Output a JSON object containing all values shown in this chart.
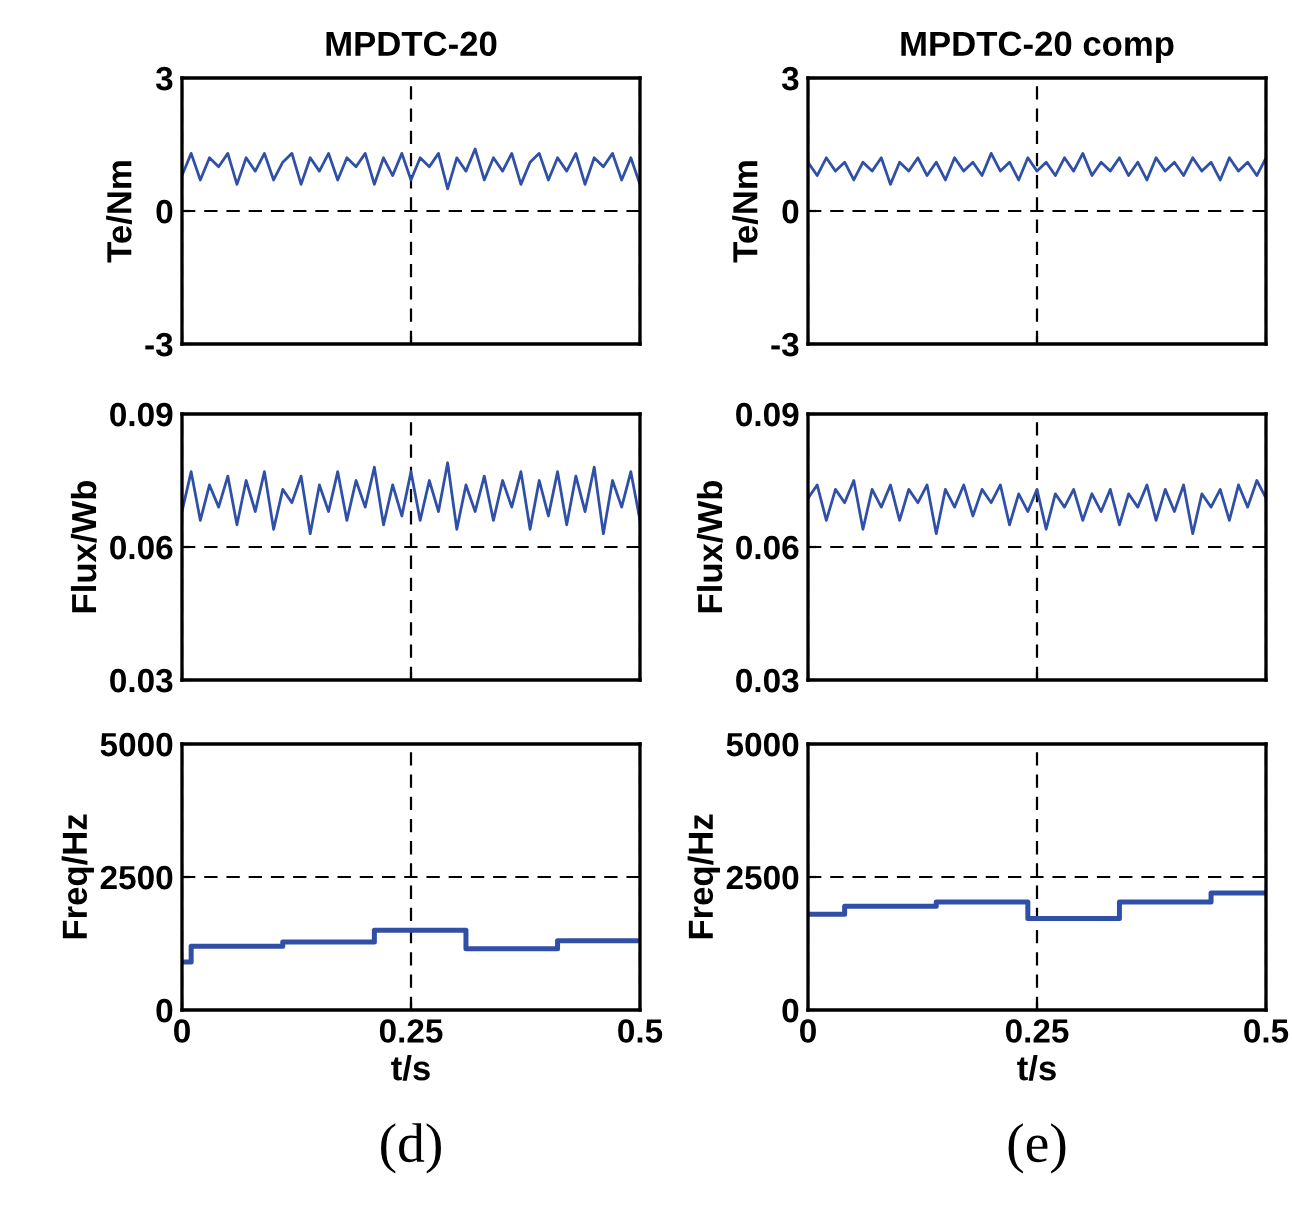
{
  "chart_data": [
    {
      "type": "line",
      "title": "MPDTC-20",
      "ylabel": "Te/Nm",
      "xlim": [
        0,
        0.5
      ],
      "xticks": [
        0,
        0.25,
        0.5
      ],
      "ylim": [
        -3,
        3
      ],
      "yticks": [
        -3,
        0,
        3
      ],
      "grid": true,
      "tick_labels": "y",
      "x": [
        0,
        0.01,
        0.02,
        0.03,
        0.04,
        0.05,
        0.06,
        0.07,
        0.08,
        0.09,
        0.1,
        0.11,
        0.12,
        0.13,
        0.14,
        0.15,
        0.16,
        0.17,
        0.18,
        0.19,
        0.2,
        0.21,
        0.22,
        0.23,
        0.24,
        0.25,
        0.26,
        0.27,
        0.28,
        0.29,
        0.3,
        0.31,
        0.32,
        0.33,
        0.34,
        0.35,
        0.36,
        0.37,
        0.38,
        0.39,
        0.4,
        0.41,
        0.42,
        0.43,
        0.44,
        0.45,
        0.46,
        0.47,
        0.48,
        0.49,
        0.5
      ],
      "series": [
        {
          "color": "#3050a8",
          "values": [
            0.8,
            1.3,
            0.7,
            1.2,
            1.0,
            1.3,
            0.6,
            1.2,
            0.9,
            1.3,
            0.7,
            1.1,
            1.3,
            0.6,
            1.2,
            0.9,
            1.3,
            0.7,
            1.2,
            1.0,
            1.3,
            0.6,
            1.2,
            0.8,
            1.3,
            0.7,
            1.2,
            1.0,
            1.3,
            0.5,
            1.2,
            0.9,
            1.4,
            0.7,
            1.2,
            0.9,
            1.3,
            0.6,
            1.1,
            1.3,
            0.7,
            1.2,
            0.9,
            1.3,
            0.6,
            1.2,
            1.0,
            1.3,
            0.7,
            1.2,
            0.6
          ]
        }
      ]
    },
    {
      "type": "line",
      "title": "MPDTC-20 comp",
      "ylabel": "Te/Nm",
      "xlim": [
        0,
        0.5
      ],
      "xticks": [
        0,
        0.25,
        0.5
      ],
      "ylim": [
        -3,
        3
      ],
      "yticks": [
        -3,
        0,
        3
      ],
      "grid": true,
      "tick_labels": "y",
      "x": [
        0,
        0.01,
        0.02,
        0.03,
        0.04,
        0.05,
        0.06,
        0.07,
        0.08,
        0.09,
        0.1,
        0.11,
        0.12,
        0.13,
        0.14,
        0.15,
        0.16,
        0.17,
        0.18,
        0.19,
        0.2,
        0.21,
        0.22,
        0.23,
        0.24,
        0.25,
        0.26,
        0.27,
        0.28,
        0.29,
        0.3,
        0.31,
        0.32,
        0.33,
        0.34,
        0.35,
        0.36,
        0.37,
        0.38,
        0.39,
        0.4,
        0.41,
        0.42,
        0.43,
        0.44,
        0.45,
        0.46,
        0.47,
        0.48,
        0.49,
        0.5
      ],
      "series": [
        {
          "color": "#3050a8",
          "values": [
            1.1,
            0.8,
            1.2,
            0.9,
            1.1,
            0.7,
            1.1,
            0.9,
            1.2,
            0.6,
            1.1,
            0.9,
            1.2,
            0.8,
            1.1,
            0.7,
            1.2,
            0.9,
            1.1,
            0.8,
            1.3,
            0.9,
            1.1,
            0.7,
            1.2,
            0.9,
            1.1,
            0.8,
            1.2,
            0.9,
            1.3,
            0.8,
            1.1,
            0.9,
            1.2,
            0.8,
            1.1,
            0.7,
            1.2,
            0.9,
            1.1,
            0.8,
            1.2,
            0.9,
            1.1,
            0.7,
            1.2,
            0.9,
            1.1,
            0.8,
            1.2
          ]
        }
      ]
    },
    {
      "type": "line",
      "ylabel": "Flux/Wb",
      "xlim": [
        0,
        0.5
      ],
      "xticks": [
        0,
        0.25,
        0.5
      ],
      "ylim": [
        0.03,
        0.09
      ],
      "yticks": [
        0.03,
        0.06,
        0.09
      ],
      "grid": true,
      "tick_labels": "y",
      "x": [
        0,
        0.01,
        0.02,
        0.03,
        0.04,
        0.05,
        0.06,
        0.07,
        0.08,
        0.09,
        0.1,
        0.11,
        0.12,
        0.13,
        0.14,
        0.15,
        0.16,
        0.17,
        0.18,
        0.19,
        0.2,
        0.21,
        0.22,
        0.23,
        0.24,
        0.25,
        0.26,
        0.27,
        0.28,
        0.29,
        0.3,
        0.31,
        0.32,
        0.33,
        0.34,
        0.35,
        0.36,
        0.37,
        0.38,
        0.39,
        0.4,
        0.41,
        0.42,
        0.43,
        0.44,
        0.45,
        0.46,
        0.47,
        0.48,
        0.49,
        0.5
      ],
      "series": [
        {
          "color": "#3050a8",
          "values": [
            0.068,
            0.077,
            0.066,
            0.074,
            0.069,
            0.076,
            0.065,
            0.075,
            0.068,
            0.077,
            0.064,
            0.073,
            0.07,
            0.076,
            0.063,
            0.074,
            0.068,
            0.077,
            0.066,
            0.075,
            0.069,
            0.078,
            0.065,
            0.074,
            0.067,
            0.077,
            0.066,
            0.075,
            0.068,
            0.079,
            0.064,
            0.074,
            0.068,
            0.076,
            0.066,
            0.075,
            0.069,
            0.077,
            0.064,
            0.075,
            0.067,
            0.077,
            0.065,
            0.076,
            0.068,
            0.078,
            0.063,
            0.075,
            0.069,
            0.077,
            0.066
          ]
        }
      ]
    },
    {
      "type": "line",
      "ylabel": "Flux/Wb",
      "xlim": [
        0,
        0.5
      ],
      "xticks": [
        0,
        0.25,
        0.5
      ],
      "ylim": [
        0.03,
        0.09
      ],
      "yticks": [
        0.03,
        0.06,
        0.09
      ],
      "grid": true,
      "tick_labels": "y",
      "x": [
        0,
        0.01,
        0.02,
        0.03,
        0.04,
        0.05,
        0.06,
        0.07,
        0.08,
        0.09,
        0.1,
        0.11,
        0.12,
        0.13,
        0.14,
        0.15,
        0.16,
        0.17,
        0.18,
        0.19,
        0.2,
        0.21,
        0.22,
        0.23,
        0.24,
        0.25,
        0.26,
        0.27,
        0.28,
        0.29,
        0.3,
        0.31,
        0.32,
        0.33,
        0.34,
        0.35,
        0.36,
        0.37,
        0.38,
        0.39,
        0.4,
        0.41,
        0.42,
        0.43,
        0.44,
        0.45,
        0.46,
        0.47,
        0.48,
        0.49,
        0.5
      ],
      "series": [
        {
          "color": "#3050a8",
          "values": [
            0.071,
            0.074,
            0.066,
            0.073,
            0.07,
            0.075,
            0.064,
            0.073,
            0.069,
            0.074,
            0.066,
            0.073,
            0.07,
            0.074,
            0.063,
            0.073,
            0.069,
            0.074,
            0.067,
            0.073,
            0.07,
            0.074,
            0.065,
            0.072,
            0.068,
            0.073,
            0.064,
            0.072,
            0.069,
            0.073,
            0.066,
            0.072,
            0.068,
            0.073,
            0.065,
            0.072,
            0.069,
            0.074,
            0.066,
            0.073,
            0.068,
            0.074,
            0.063,
            0.072,
            0.069,
            0.073,
            0.066,
            0.074,
            0.069,
            0.075,
            0.071
          ]
        }
      ]
    },
    {
      "type": "step",
      "ylabel": "Freq/Hz",
      "xlabel": "t/s",
      "xlim": [
        0,
        0.5
      ],
      "xticks": [
        0,
        0.25,
        0.5
      ],
      "ylim": [
        0,
        5000
      ],
      "yticks": [
        0,
        2500,
        5000
      ],
      "grid": true,
      "annotations": [
        "(d)"
      ],
      "x": [
        0,
        0.01,
        0.11,
        0.21,
        0.31,
        0.41,
        0.5
      ],
      "series": [
        {
          "color": "#3050a8",
          "values": [
            900,
            1200,
            1280,
            1500,
            1150,
            1300,
            1300
          ]
        }
      ]
    },
    {
      "type": "step",
      "ylabel": "Freq/Hz",
      "xlabel": "t/s",
      "xlim": [
        0,
        0.5
      ],
      "xticks": [
        0,
        0.25,
        0.5
      ],
      "ylim": [
        0,
        5000
      ],
      "yticks": [
        0,
        2500,
        5000
      ],
      "grid": true,
      "annotations": [
        "(e)"
      ],
      "x": [
        0,
        0.04,
        0.14,
        0.24,
        0.34,
        0.44,
        0.5
      ],
      "series": [
        {
          "color": "#3050a8",
          "values": [
            1800,
            1950,
            2030,
            1720,
            2030,
            2200,
            2200
          ]
        }
      ]
    }
  ]
}
